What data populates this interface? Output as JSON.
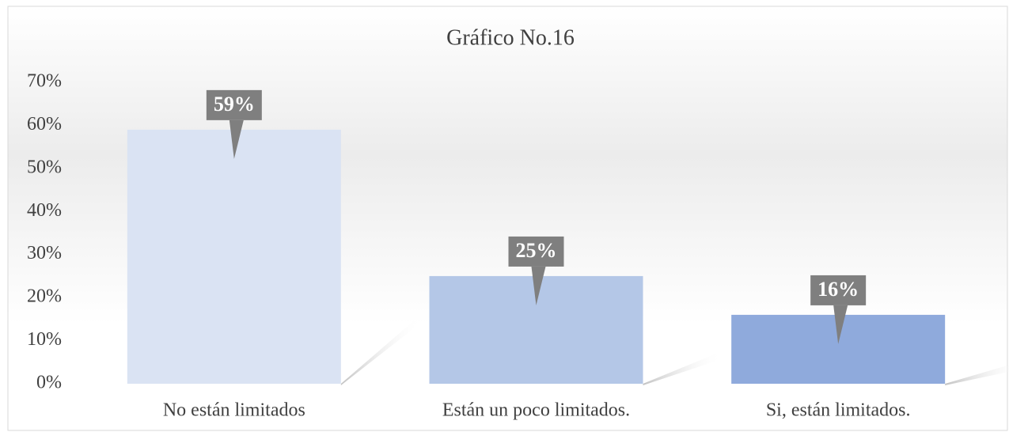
{
  "chart_data": {
    "type": "bar",
    "title": "Gráfico No.16",
    "categories": [
      "No están limitados",
      "Están un poco limitados.",
      "Si, están limitados."
    ],
    "values": [
      59,
      25,
      16
    ],
    "value_labels": [
      "59%",
      "25%",
      "16%"
    ],
    "colors": [
      "#dae3f3",
      "#b4c7e7",
      "#8faadc"
    ],
    "ylim": [
      0,
      70
    ],
    "yticks": [
      {
        "value": 0,
        "label": "0%"
      },
      {
        "value": 10,
        "label": "10%"
      },
      {
        "value": 20,
        "label": "20%"
      },
      {
        "value": 30,
        "label": "30%"
      },
      {
        "value": 40,
        "label": "40%"
      },
      {
        "value": 50,
        "label": "50%"
      },
      {
        "value": 60,
        "label": "60%"
      },
      {
        "value": 70,
        "label": "70%"
      }
    ],
    "grid": false
  }
}
